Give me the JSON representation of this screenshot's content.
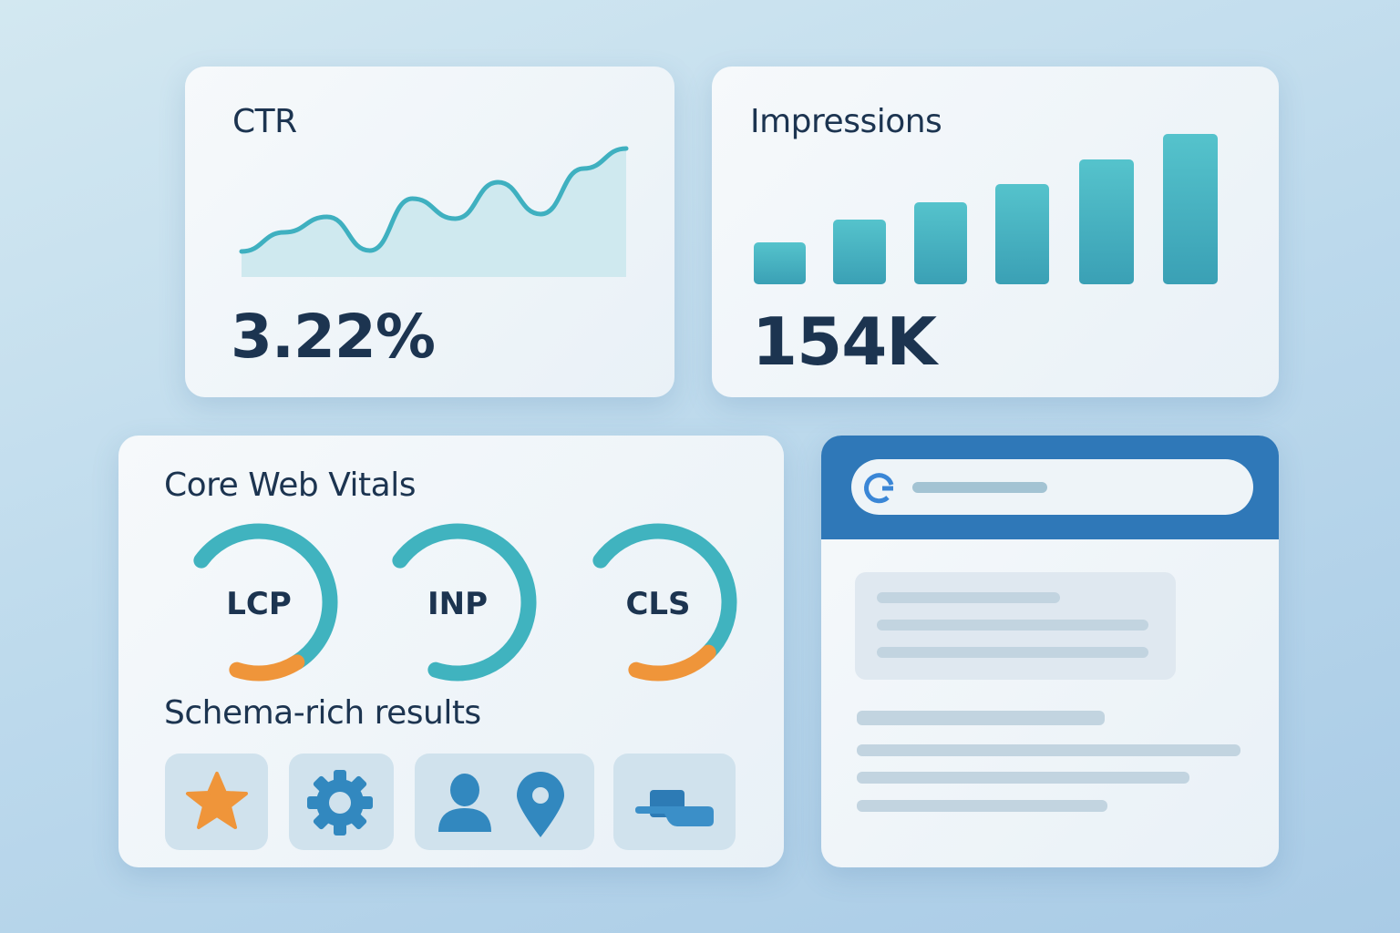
{
  "ctr": {
    "title": "CTR",
    "value": "3.22%",
    "trend": [
      276,
      255,
      238,
      275,
      218,
      240,
      200,
      235,
      185,
      163
    ],
    "colors": {
      "line": "#3fb0c0",
      "fill": "#cfe9ef"
    }
  },
  "impressions": {
    "title": "Impressions",
    "value": "154K",
    "bars": [
      46,
      71,
      90,
      110,
      137,
      165
    ],
    "colors": {
      "bar_top": "#55c3cc",
      "bar_bottom": "#3aa0b5"
    }
  },
  "vitals": {
    "title": "Core Web Vitals",
    "gauges": [
      {
        "label": "LCP",
        "warn_fraction": 0.2
      },
      {
        "label": "INP",
        "warn_fraction": 0
      },
      {
        "label": "CLS",
        "warn_fraction": 0.25
      }
    ],
    "colors": {
      "good": "#40b3bf",
      "warn": "#ef953a"
    }
  },
  "schema": {
    "title": "Schema-rich results",
    "icons": [
      "star-icon",
      "gear-icon",
      "person-icon",
      "location-pin-icon",
      "breadcrumb-icon"
    ]
  },
  "serp": {
    "icon": "google-g-icon",
    "header_color": "#2f78b8"
  }
}
